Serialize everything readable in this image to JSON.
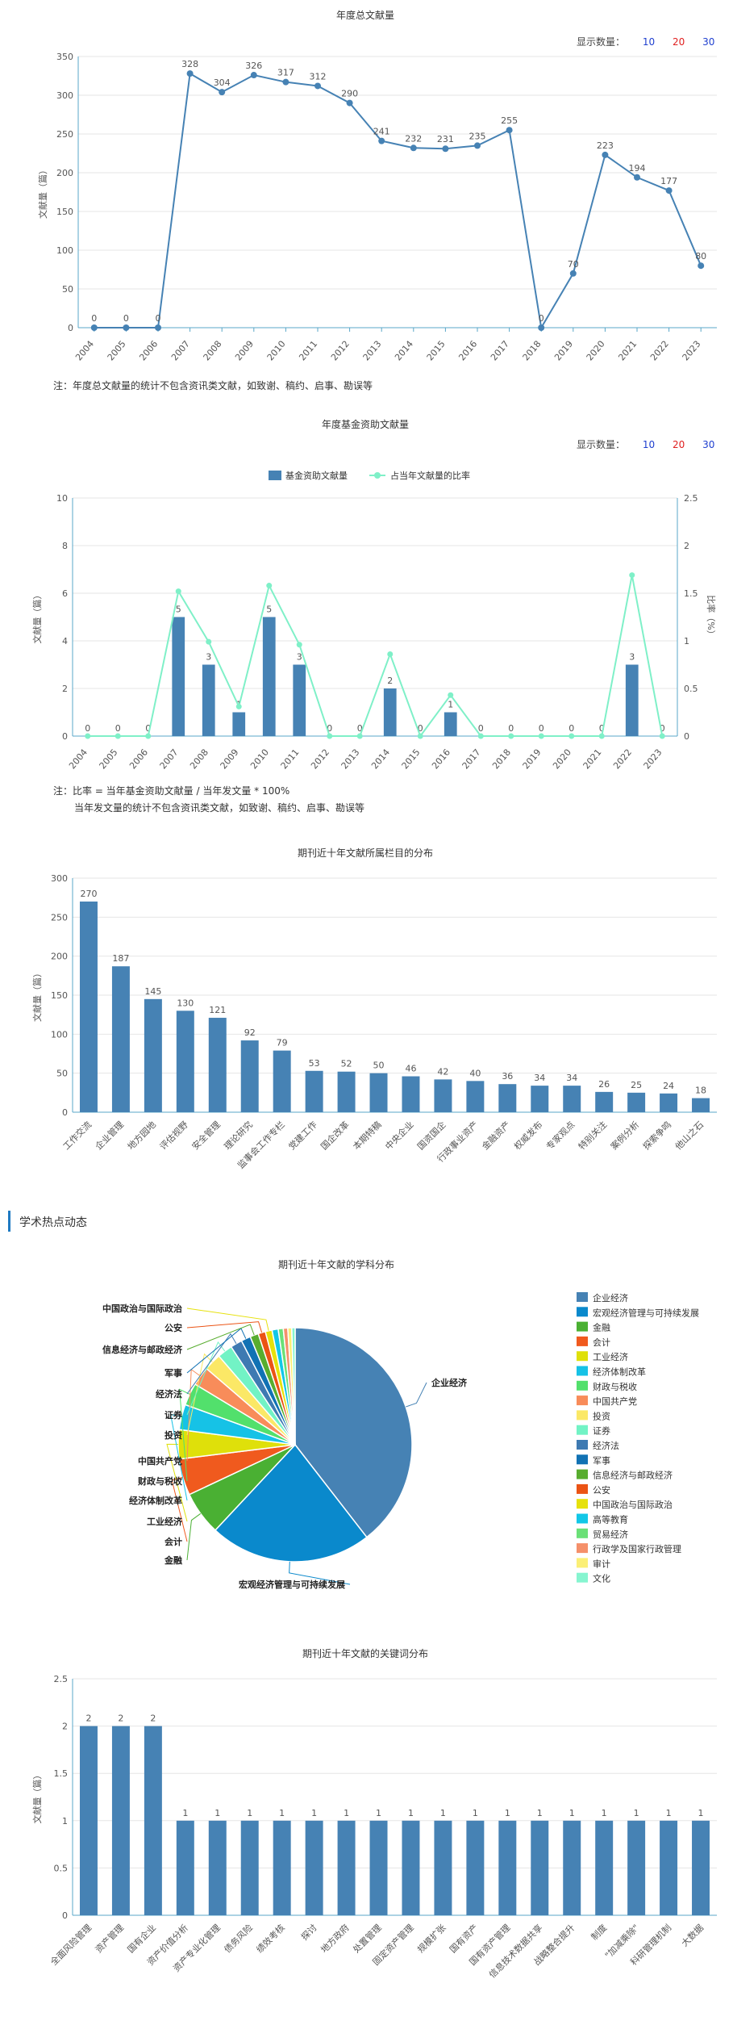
{
  "colors": {
    "primary": "#4682b4",
    "bar": "#4682b4",
    "ratio": "#7ff0c8",
    "count10": "#1f3fcf",
    "count20": "#e02020",
    "count30": "#1f3fcf"
  },
  "display_count": {
    "label": "显示数量：",
    "opt10": "10",
    "opt20": "20",
    "opt30": "30"
  },
  "notes": {
    "annual": "注：年度总文献量的统计不包含资讯类文献，如致谢、稿约、启事、勘误等",
    "fund_line1": "注：比率 = 当年基金资助文献量 / 当年发文量 * 100%",
    "fund_line2": "当年发文量的统计不包含资讯类文献，如致谢、稿约、启事、勘误等"
  },
  "section_title": "学术热点动态",
  "chart_data": [
    {
      "type": "line",
      "title": "年度总文献量",
      "ylabel": "文献量（篇）",
      "ylim": [
        0,
        350
      ],
      "yticks": [
        0,
        50,
        100,
        150,
        200,
        250,
        300,
        350
      ],
      "categories": [
        "2004",
        "2005",
        "2006",
        "2007",
        "2008",
        "2009",
        "2010",
        "2011",
        "2012",
        "2013",
        "2014",
        "2015",
        "2016",
        "2017",
        "2018",
        "2019",
        "2020",
        "2021",
        "2022",
        "2023"
      ],
      "values": [
        0,
        0,
        0,
        328,
        304,
        326,
        317,
        312,
        290,
        241,
        232,
        231,
        235,
        255,
        0,
        70,
        223,
        194,
        177,
        80
      ]
    },
    {
      "type": "bar",
      "title": "年度基金资助文献量",
      "ylabel": "文献量（篇）",
      "y2label": "比率（%）",
      "ylim": [
        0,
        10
      ],
      "yticks": [
        0,
        2,
        4,
        6,
        8,
        10
      ],
      "y2lim": [
        0,
        2.5
      ],
      "y2ticks": [
        0,
        0.5,
        1,
        1.5,
        2,
        2.5
      ],
      "legend": [
        "基金资助文献量",
        "占当年文献量的比率"
      ],
      "categories": [
        "2004",
        "2005",
        "2006",
        "2007",
        "2008",
        "2009",
        "2010",
        "2011",
        "2012",
        "2013",
        "2014",
        "2015",
        "2016",
        "2017",
        "2018",
        "2019",
        "2020",
        "2021",
        "2022",
        "2023"
      ],
      "series": [
        {
          "name": "基金资助文献量",
          "values": [
            0,
            0,
            0,
            5,
            3,
            1,
            5,
            3,
            0,
            0,
            2,
            0,
            1,
            0,
            0,
            0,
            0,
            0,
            3,
            0
          ]
        },
        {
          "name": "占当年文献量的比率",
          "values": [
            0,
            0,
            0,
            1.52,
            0.99,
            0.31,
            1.58,
            0.96,
            0,
            0,
            0.86,
            0,
            0.43,
            0,
            0,
            0,
            0,
            0,
            1.69,
            0
          ]
        }
      ]
    },
    {
      "type": "bar",
      "title": "期刊近十年文献所属栏目的分布",
      "ylabel": "文献量（篇）",
      "ylim": [
        0,
        300
      ],
      "yticks": [
        0,
        50,
        100,
        150,
        200,
        250,
        300
      ],
      "categories": [
        "工作交流",
        "企业管理",
        "地方园地",
        "评估视野",
        "安全管理",
        "理论研究",
        "监事会工作专栏",
        "党建工作",
        "国企改革",
        "本期特稿",
        "中央企业",
        "国资国企",
        "行政事业资产",
        "金融资产",
        "权威发布",
        "专家观点",
        "特别关注",
        "案例分析",
        "探索争鸣",
        "他山之石"
      ],
      "values": [
        270,
        187,
        145,
        130,
        121,
        92,
        79,
        53,
        52,
        50,
        46,
        42,
        40,
        36,
        34,
        34,
        26,
        25,
        24,
        18
      ]
    },
    {
      "type": "pie",
      "title": "期刊近十年文献的学科分布",
      "categories": [
        "企业经济",
        "宏观经济管理与可持续发展",
        "金融",
        "会计",
        "工业经济",
        "经济体制改革",
        "财政与税收",
        "中国共产党",
        "投资",
        "证券",
        "经济法",
        "军事",
        "信息经济与邮政经济",
        "公安",
        "中国政治与国际政治",
        "高等教育",
        "贸易经济",
        "行政学及国家行政管理",
        "审计",
        "文化"
      ],
      "values": [
        510,
        290,
        78,
        65,
        52,
        45,
        40,
        34,
        31,
        27,
        21,
        17,
        15,
        13,
        12,
        11,
        9,
        8,
        7,
        6
      ],
      "colors": [
        "#4682b4",
        "#0a89cc",
        "#4ab033",
        "#f05a1e",
        "#dfe00a",
        "#16c2e6",
        "#52e06c",
        "#f88c5a",
        "#fbe866",
        "#72f3c5",
        "#3e7ab2",
        "#1172b4",
        "#58ad2f",
        "#eb5314",
        "#e6e10c",
        "#12c7e7",
        "#6be077",
        "#f5906a",
        "#fbef76",
        "#86f5d0"
      ]
    },
    {
      "type": "bar",
      "title": "期刊近十年文献的关键词分布",
      "ylabel": "文献量（篇）",
      "ylim": [
        0,
        2.5
      ],
      "yticks": [
        0,
        0.5,
        1,
        1.5,
        2,
        2.5
      ],
      "categories": [
        "全面风险管理",
        "资产管理",
        "国有企业",
        "资产价值分析",
        "资产专业化管理",
        "债务风险",
        "绩效考核",
        "探讨",
        "地方政府",
        "处置管理",
        "固定资产管理",
        "规模扩张",
        "国有资产",
        "国有资产管理",
        "信息技术数据共享",
        "战略整合提升",
        "制度",
        "\"加减乘除\"",
        "科研管理机制",
        "大数据"
      ],
      "values": [
        2,
        2,
        2,
        1,
        1,
        1,
        1,
        1,
        1,
        1,
        1,
        1,
        1,
        1,
        1,
        1,
        1,
        1,
        1,
        1
      ]
    }
  ]
}
